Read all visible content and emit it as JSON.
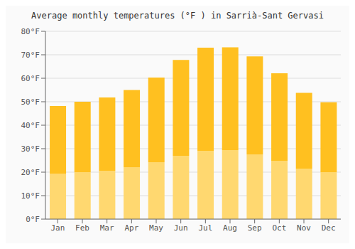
{
  "chart_data": {
    "type": "bar",
    "title": "Average monthly temperatures (°F ) in Sarrià-Sant Gervasi",
    "categories": [
      "Jan",
      "Feb",
      "Mar",
      "Apr",
      "May",
      "Jun",
      "Jul",
      "Aug",
      "Sep",
      "Oct",
      "Nov",
      "Dec"
    ],
    "values": [
      48.2,
      50.0,
      51.8,
      55.0,
      60.3,
      67.8,
      73.0,
      73.2,
      69.3,
      62.1,
      53.8,
      49.8
    ],
    "color": "#FFC020",
    "ylim": [
      0,
      80
    ],
    "yticks": [
      {
        "value": 0,
        "label": "0°F"
      },
      {
        "value": 10,
        "label": "10°F"
      },
      {
        "value": 20,
        "label": "20°F"
      },
      {
        "value": 30,
        "label": "30°F"
      },
      {
        "value": 40,
        "label": "40°F"
      },
      {
        "value": 50,
        "label": "50°F"
      },
      {
        "value": 60,
        "label": "60°F"
      },
      {
        "value": 70,
        "label": "70°F"
      },
      {
        "value": 80,
        "label": "80°F"
      }
    ],
    "grid": true
  }
}
